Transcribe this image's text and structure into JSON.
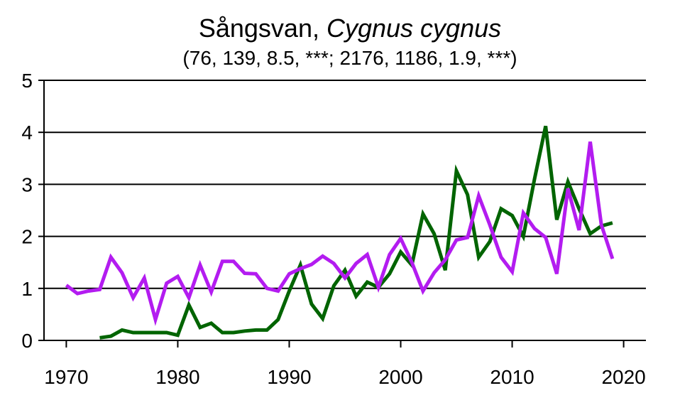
{
  "chart_data": {
    "type": "line",
    "title": {
      "text": "Sångsvan, ",
      "italic_text": "Cygnus cygnus"
    },
    "subtitle": "(76, 139, 8.5, ***; 2176, 1186, 1.9, ***)",
    "xlabel": "",
    "ylabel": "",
    "xlim": [
      1968,
      2022
    ],
    "ylim": [
      0,
      5
    ],
    "xticks": [
      "1970",
      "1980",
      "1990",
      "2000",
      "2010",
      "2020"
    ],
    "yticks": [
      "0",
      "1",
      "2",
      "3",
      "4",
      "5"
    ],
    "grid": "horizontal",
    "legend": "none",
    "series": [
      {
        "color": "#006400",
        "x": [
          1973,
          1974,
          1975,
          1976,
          1977,
          1978,
          1979,
          1980,
          1981,
          1982,
          1983,
          1984,
          1985,
          1986,
          1987,
          1988,
          1989,
          1990,
          1991,
          1992,
          1993,
          1994,
          1995,
          1996,
          1997,
          1998,
          1999,
          2000,
          2001,
          2002,
          2003,
          2004,
          2005,
          2006,
          2007,
          2008,
          2009,
          2010,
          2011,
          2012,
          2013,
          2014,
          2015,
          2016,
          2017,
          2018,
          2019
        ],
        "y": [
          0.05,
          0.08,
          0.2,
          0.15,
          0.15,
          0.15,
          0.15,
          0.1,
          0.68,
          0.25,
          0.33,
          0.15,
          0.15,
          0.18,
          0.2,
          0.2,
          0.4,
          0.95,
          1.45,
          0.7,
          0.42,
          1.05,
          1.35,
          0.85,
          1.12,
          1.02,
          1.28,
          1.7,
          1.45,
          2.43,
          2.05,
          1.35,
          3.26,
          2.8,
          1.6,
          1.9,
          2.53,
          2.4,
          2.0,
          3.1,
          4.12,
          2.32,
          3.05,
          2.53,
          2.05,
          2.2,
          2.26
        ]
      },
      {
        "color": "#b31cf0",
        "x": [
          1970,
          1971,
          1972,
          1973,
          1974,
          1975,
          1976,
          1977,
          1978,
          1979,
          1980,
          1981,
          1982,
          1983,
          1984,
          1985,
          1986,
          1987,
          1988,
          1989,
          1990,
          1991,
          1992,
          1993,
          1994,
          1995,
          1996,
          1997,
          1998,
          1999,
          2000,
          2001,
          2002,
          2003,
          2004,
          2005,
          2006,
          2007,
          2008,
          2009,
          2010,
          2011,
          2012,
          2013,
          2014,
          2015,
          2016,
          2017,
          2018,
          2019
        ],
        "y": [
          1.06,
          0.9,
          0.95,
          0.98,
          1.6,
          1.3,
          0.82,
          1.2,
          0.4,
          1.1,
          1.23,
          0.82,
          1.45,
          0.93,
          1.52,
          1.52,
          1.29,
          1.28,
          1.0,
          0.95,
          1.28,
          1.38,
          1.46,
          1.62,
          1.48,
          1.2,
          1.48,
          1.65,
          1.02,
          1.65,
          1.96,
          1.5,
          0.95,
          1.3,
          1.55,
          1.93,
          1.98,
          2.78,
          2.22,
          1.6,
          1.32,
          2.45,
          2.15,
          1.98,
          1.28,
          2.92,
          2.12,
          3.82,
          2.22,
          1.57
        ]
      }
    ]
  }
}
